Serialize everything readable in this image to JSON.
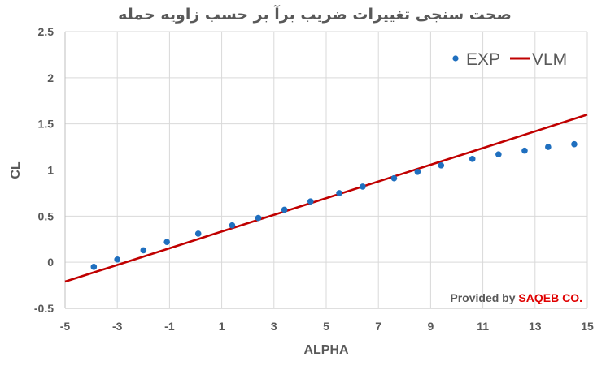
{
  "chart_data": {
    "type": "scatter",
    "title": "صحت سنجی تغییرات ضریب برآ بر حسب زاویه حمله",
    "xlabel": "ALPHA",
    "ylabel": "CL",
    "xlim": [
      -5,
      15
    ],
    "ylim": [
      -0.5,
      2.5
    ],
    "x_ticks": [
      -5,
      -3,
      -1,
      1,
      3,
      5,
      7,
      9,
      11,
      13,
      15
    ],
    "y_ticks": [
      -0.5,
      0,
      0.5,
      1,
      1.5,
      2,
      2.5
    ],
    "x_tick_labels": [
      "-5",
      "-3",
      "-1",
      "1",
      "3",
      "5",
      "7",
      "9",
      "11",
      "13",
      "15"
    ],
    "y_tick_labels": [
      "-0.5",
      "0",
      "0.5",
      "1",
      "1.5",
      "2",
      "2.5"
    ],
    "grid": true,
    "legend_position": "top-right",
    "series": [
      {
        "name": "EXP",
        "kind": "scatter",
        "color": "#1f6fbf",
        "points": [
          [
            -3.9,
            -0.05
          ],
          [
            -3.0,
            0.03
          ],
          [
            -2.0,
            0.13
          ],
          [
            -1.1,
            0.22
          ],
          [
            0.1,
            0.31
          ],
          [
            1.4,
            0.4
          ],
          [
            2.4,
            0.48
          ],
          [
            3.4,
            0.57
          ],
          [
            4.4,
            0.66
          ],
          [
            5.5,
            0.75
          ],
          [
            6.4,
            0.82
          ],
          [
            7.6,
            0.91
          ],
          [
            8.5,
            0.98
          ],
          [
            9.4,
            1.05
          ],
          [
            10.6,
            1.12
          ],
          [
            11.6,
            1.17
          ],
          [
            12.6,
            1.21
          ],
          [
            13.5,
            1.25
          ],
          [
            14.5,
            1.28
          ]
        ]
      },
      {
        "name": "VLM",
        "kind": "line",
        "color": "#c00000",
        "points": [
          [
            -5,
            -0.21
          ],
          [
            15,
            1.6
          ]
        ]
      }
    ],
    "annotation": {
      "prefix": "Provided by ",
      "highlight": "SAQEB CO.",
      "prefix_color": "#595959",
      "highlight_color": "#e00000"
    }
  }
}
